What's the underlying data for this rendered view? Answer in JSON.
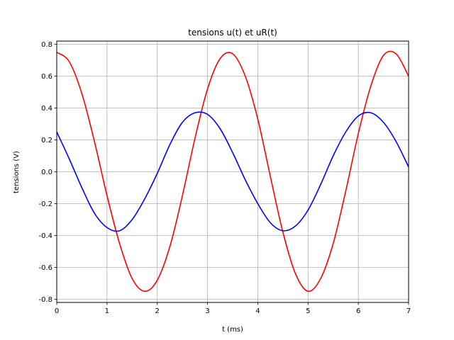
{
  "chart_data": {
    "type": "line",
    "title": "tensions u(t) et uR(t)",
    "xlabel": "t (ms)",
    "ylabel": "tensions (V)",
    "xlim": [
      0,
      7
    ],
    "ylim": [
      -0.82,
      0.82
    ],
    "grid": true,
    "xticks": [
      "0",
      "1",
      "2",
      "3",
      "4",
      "5",
      "6",
      "7"
    ],
    "yticks": [
      "-0.8",
      "-0.6",
      "-0.4",
      "-0.2",
      "0.0",
      "0.2",
      "0.4",
      "0.6",
      "0.8"
    ],
    "series": [
      {
        "color": "#ff0000",
        "x": [
          0,
          0.25,
          0.5,
          0.75,
          1.0,
          1.25,
          1.5,
          1.75,
          2.0,
          2.25,
          2.5,
          2.75,
          3.0,
          3.25,
          3.5,
          3.75,
          4.0,
          4.25,
          4.5,
          4.75,
          5.0,
          5.25,
          5.5,
          5.75,
          6.0,
          6.25,
          6.5,
          6.75,
          7.0
        ],
        "y": [
          0.75,
          0.69,
          0.49,
          0.19,
          -0.15,
          -0.45,
          -0.67,
          -0.75,
          -0.68,
          -0.47,
          -0.15,
          0.21,
          0.52,
          0.71,
          0.74,
          0.6,
          0.33,
          -0.03,
          -0.38,
          -0.64,
          -0.75,
          -0.67,
          -0.45,
          -0.12,
          0.24,
          0.54,
          0.73,
          0.74,
          0.6
        ]
      },
      {
        "color": "#0000ff",
        "x": [
          0,
          0.25,
          0.5,
          0.75,
          1.0,
          1.25,
          1.5,
          1.75,
          2.0,
          2.25,
          2.5,
          2.75,
          3.0,
          3.25,
          3.5,
          3.75,
          4.0,
          4.25,
          4.5,
          4.75,
          5.0,
          5.25,
          5.5,
          5.75,
          6.0,
          6.25,
          6.5,
          6.75,
          7.0
        ],
        "y": [
          0.25,
          0.08,
          -0.1,
          -0.26,
          -0.35,
          -0.37,
          -0.3,
          -0.17,
          -0.01,
          0.17,
          0.31,
          0.37,
          0.36,
          0.27,
          0.12,
          -0.05,
          -0.2,
          -0.32,
          -0.37,
          -0.34,
          -0.24,
          -0.08,
          0.1,
          0.25,
          0.35,
          0.37,
          0.31,
          0.19,
          0.03
        ]
      }
    ]
  }
}
